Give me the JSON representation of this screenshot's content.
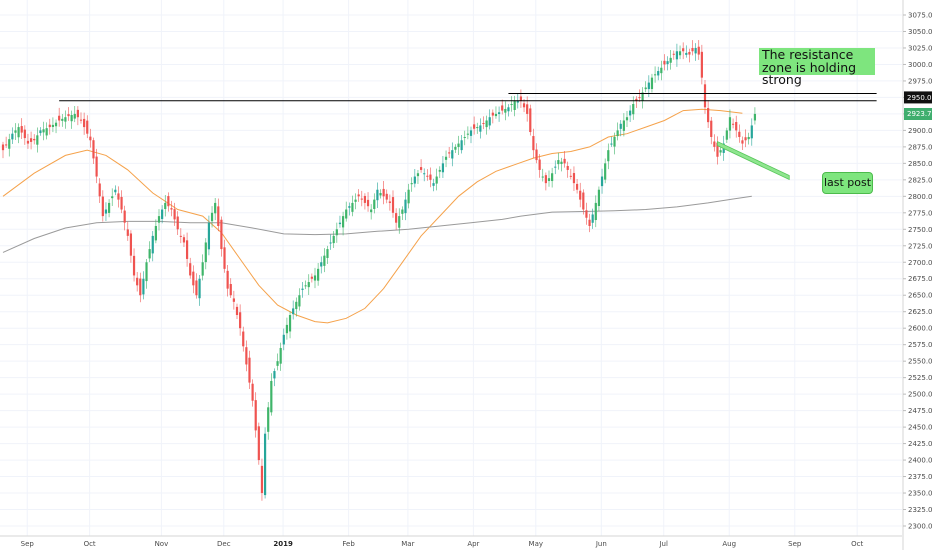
{
  "chart_data": {
    "type": "candlestick",
    "instrument_last_price": "2923.7",
    "y_axis": {
      "range": [
        2290,
        3085
      ],
      "ticks": [
        "2300.0",
        "2325.0",
        "2350.0",
        "2375.0",
        "2400.0",
        "2425.0",
        "2450.0",
        "2475.0",
        "2500.0",
        "2525.0",
        "2550.0",
        "2575.0",
        "2600.0",
        "2625.0",
        "2650.0",
        "2675.0",
        "2700.0",
        "2725.0",
        "2750.0",
        "2775.0",
        "2800.0",
        "2825.0",
        "2850.0",
        "2875.0",
        "2900.0",
        "2925.0",
        "2950.0",
        "2975.0",
        "3000.0",
        "3025.0",
        "3050.0",
        "3075.0"
      ],
      "highlighted_tick": "2950.0"
    },
    "x_axis": {
      "ticks": [
        {
          "label": "Sep",
          "bar": 2
        },
        {
          "label": "Oct",
          "bar": 22
        },
        {
          "label": "Nov",
          "bar": 45
        },
        {
          "label": "Dec",
          "bar": 65
        },
        {
          "label": "2019",
          "bar": 84,
          "bold": true
        },
        {
          "label": "Feb",
          "bar": 105
        },
        {
          "label": "Mar",
          "bar": 124
        },
        {
          "label": "Apr",
          "bar": 145
        },
        {
          "label": "May",
          "bar": 165
        },
        {
          "label": "Jun",
          "bar": 186
        },
        {
          "label": "Jul",
          "bar": 206
        },
        {
          "label": "Aug",
          "bar": 227
        },
        {
          "label": "Sep",
          "bar": 248
        },
        {
          "label": "Oct",
          "bar": 268
        }
      ]
    },
    "close_anchors": [
      [
        0,
        2870
      ],
      [
        3,
        2895
      ],
      [
        5,
        2905
      ],
      [
        8,
        2880
      ],
      [
        10,
        2885
      ],
      [
        12,
        2900
      ],
      [
        15,
        2905
      ],
      [
        18,
        2915
      ],
      [
        20,
        2920
      ],
      [
        23,
        2925
      ],
      [
        25,
        2915
      ],
      [
        28,
        2885
      ],
      [
        30,
        2830
      ],
      [
        32,
        2770
      ],
      [
        34,
        2790
      ],
      [
        36,
        2810
      ],
      [
        38,
        2780
      ],
      [
        40,
        2740
      ],
      [
        42,
        2680
      ],
      [
        44,
        2650
      ],
      [
        46,
        2700
      ],
      [
        48,
        2740
      ],
      [
        50,
        2770
      ],
      [
        52,
        2790
      ],
      [
        54,
        2780
      ],
      [
        56,
        2750
      ],
      [
        58,
        2730
      ],
      [
        60,
        2680
      ],
      [
        62,
        2650
      ],
      [
        64,
        2700
      ],
      [
        66,
        2760
      ],
      [
        68,
        2790
      ],
      [
        70,
        2720
      ],
      [
        72,
        2660
      ],
      [
        74,
        2640
      ],
      [
        76,
        2600
      ],
      [
        78,
        2545
      ],
      [
        80,
        2490
      ],
      [
        82,
        2400
      ],
      [
        83,
        2350
      ],
      [
        84,
        2440
      ],
      [
        86,
        2520
      ],
      [
        88,
        2550
      ],
      [
        90,
        2590
      ],
      [
        92,
        2620
      ],
      [
        94,
        2640
      ],
      [
        96,
        2660
      ],
      [
        98,
        2670
      ],
      [
        100,
        2680
      ],
      [
        102,
        2700
      ],
      [
        104,
        2720
      ],
      [
        106,
        2740
      ],
      [
        108,
        2760
      ],
      [
        110,
        2780
      ],
      [
        112,
        2790
      ],
      [
        114,
        2800
      ],
      [
        116,
        2790
      ],
      [
        118,
        2780
      ],
      [
        120,
        2810
      ],
      [
        122,
        2800
      ],
      [
        124,
        2790
      ],
      [
        126,
        2760
      ],
      [
        128,
        2780
      ],
      [
        130,
        2810
      ],
      [
        132,
        2830
      ],
      [
        134,
        2840
      ],
      [
        136,
        2830
      ],
      [
        138,
        2820
      ],
      [
        140,
        2840
      ],
      [
        142,
        2860
      ],
      [
        144,
        2870
      ],
      [
        146,
        2880
      ],
      [
        148,
        2890
      ],
      [
        150,
        2900
      ],
      [
        152,
        2905
      ],
      [
        154,
        2910
      ],
      [
        156,
        2920
      ],
      [
        158,
        2925
      ],
      [
        160,
        2930
      ],
      [
        162,
        2935
      ],
      [
        164,
        2945
      ],
      [
        166,
        2945
      ],
      [
        168,
        2925
      ],
      [
        170,
        2870
      ],
      [
        172,
        2840
      ],
      [
        174,
        2820
      ],
      [
        176,
        2835
      ],
      [
        178,
        2855
      ],
      [
        180,
        2850
      ],
      [
        182,
        2830
      ],
      [
        184,
        2810
      ],
      [
        186,
        2780
      ],
      [
        188,
        2755
      ],
      [
        190,
        2790
      ],
      [
        192,
        2830
      ],
      [
        194,
        2870
      ],
      [
        196,
        2890
      ],
      [
        198,
        2910
      ],
      [
        200,
        2920
      ],
      [
        202,
        2940
      ],
      [
        204,
        2950
      ],
      [
        206,
        2965
      ],
      [
        208,
        2980
      ],
      [
        210,
        2990
      ],
      [
        212,
        3000
      ],
      [
        214,
        3010
      ],
      [
        216,
        3020
      ],
      [
        218,
        3020
      ],
      [
        220,
        3015
      ],
      [
        222,
        3025
      ],
      [
        223,
        3015
      ],
      [
        224,
        2980
      ],
      [
        225,
        2935
      ],
      [
        227,
        2890
      ],
      [
        229,
        2860
      ],
      [
        231,
        2880
      ],
      [
        233,
        2920
      ],
      [
        235,
        2900
      ],
      [
        237,
        2880
      ],
      [
        239,
        2890
      ],
      [
        241,
        2925
      ]
    ],
    "moving_averages": [
      {
        "name": "",
        "color": "#f5a24b",
        "values": [
          [
            0,
            2800
          ],
          [
            10,
            2835
          ],
          [
            20,
            2862
          ],
          [
            27,
            2870
          ],
          [
            33,
            2862
          ],
          [
            40,
            2840
          ],
          [
            48,
            2805
          ],
          [
            56,
            2780
          ],
          [
            64,
            2770
          ],
          [
            70,
            2745
          ],
          [
            76,
            2705
          ],
          [
            82,
            2665
          ],
          [
            88,
            2635
          ],
          [
            94,
            2620
          ],
          [
            100,
            2610
          ],
          [
            104,
            2608
          ],
          [
            110,
            2615
          ],
          [
            116,
            2630
          ],
          [
            122,
            2660
          ],
          [
            128,
            2700
          ],
          [
            134,
            2740
          ],
          [
            140,
            2770
          ],
          [
            146,
            2800
          ],
          [
            152,
            2822
          ],
          [
            158,
            2838
          ],
          [
            164,
            2848
          ],
          [
            170,
            2858
          ],
          [
            176,
            2865
          ],
          [
            182,
            2868
          ],
          [
            188,
            2875
          ],
          [
            194,
            2890
          ],
          [
            200,
            2895
          ],
          [
            206,
            2905
          ],
          [
            212,
            2915
          ],
          [
            218,
            2930
          ],
          [
            224,
            2932
          ],
          [
            230,
            2930
          ],
          [
            237,
            2926
          ]
        ]
      },
      {
        "name": "",
        "color": "#9a9a9a",
        "values": [
          [
            0,
            2715
          ],
          [
            10,
            2736
          ],
          [
            20,
            2752
          ],
          [
            30,
            2760
          ],
          [
            40,
            2762
          ],
          [
            50,
            2762
          ],
          [
            60,
            2760
          ],
          [
            70,
            2760
          ],
          [
            80,
            2752
          ],
          [
            90,
            2743
          ],
          [
            100,
            2742
          ],
          [
            110,
            2743
          ],
          [
            120,
            2747
          ],
          [
            130,
            2750
          ],
          [
            140,
            2755
          ],
          [
            150,
            2760
          ],
          [
            160,
            2765
          ],
          [
            166,
            2770
          ],
          [
            176,
            2776
          ],
          [
            186,
            2777
          ],
          [
            196,
            2778
          ],
          [
            206,
            2780
          ],
          [
            216,
            2784
          ],
          [
            226,
            2790
          ],
          [
            234,
            2796
          ],
          [
            240,
            2800
          ]
        ]
      }
    ],
    "horizontal_lines": [
      {
        "value": 2945,
        "from_bar": 18,
        "to_bar": 280,
        "color": "#000000"
      },
      {
        "value": 2956,
        "from_bar": 162,
        "to_bar": 280,
        "color": "#000000"
      }
    ],
    "arrow": {
      "from_bar": 229,
      "from_value": 2880,
      "to_bar": 252,
      "to_value": 2830,
      "color": "#57c75a"
    },
    "colors": {
      "up": "#26a69a",
      "up_alt": "#3fb56a",
      "down": "#ef5350",
      "grid": "#f0f3fa"
    }
  },
  "annotations": {
    "resistance_text": "The resistance zone is holding strong",
    "last_post_text": "last post"
  }
}
